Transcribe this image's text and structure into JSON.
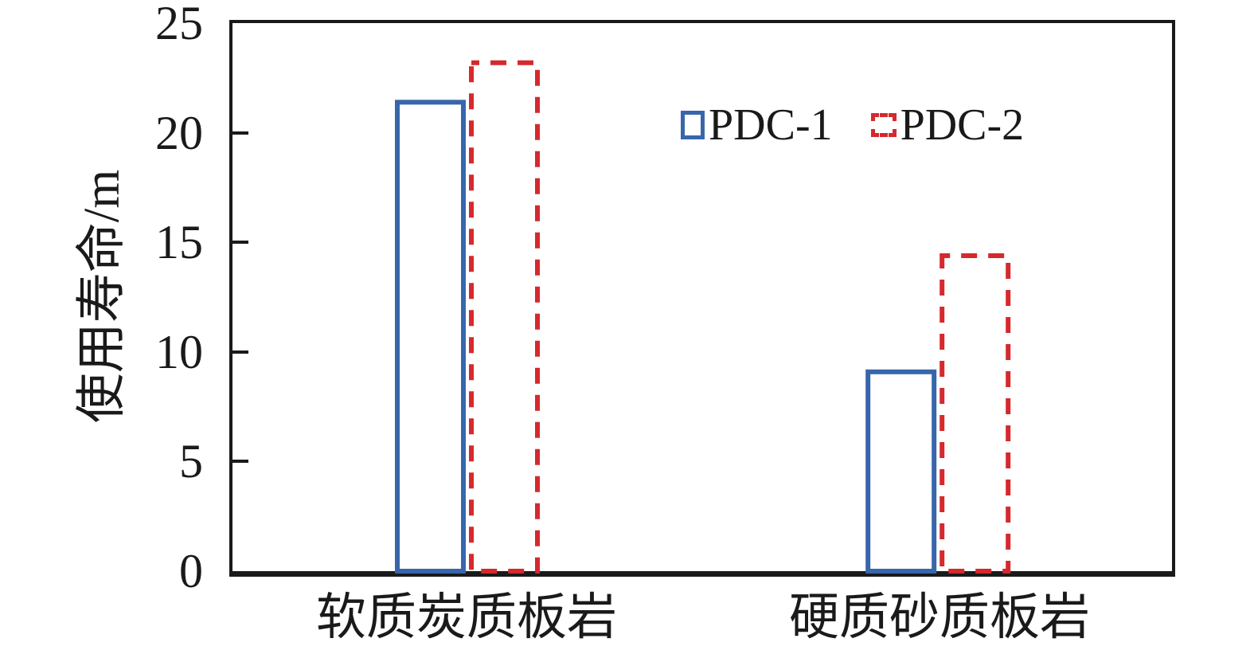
{
  "chart_data": {
    "type": "bar",
    "categories": [
      "软质炭质板岩",
      "硬质砂质板岩"
    ],
    "series": [
      {
        "name": "PDC-1",
        "values": [
          21.5,
          9.2
        ],
        "color": "#3866ab",
        "line_style": "solid"
      },
      {
        "name": "PDC-2",
        "values": [
          23.3,
          14.5
        ],
        "color": "#d5292d",
        "line_style": "dashed"
      }
    ],
    "title": "",
    "xlabel": "",
    "ylabel": "使用寿命/m",
    "ylim": [
      0,
      25
    ],
    "yticks": [
      0,
      5,
      10,
      15,
      20,
      25
    ],
    "grid": false,
    "legend_position": "top-right-inside",
    "bar_fill": "none",
    "axis_color": "#1a1a1a",
    "text_color": "#1a1a1a",
    "background": "#ffffff"
  }
}
